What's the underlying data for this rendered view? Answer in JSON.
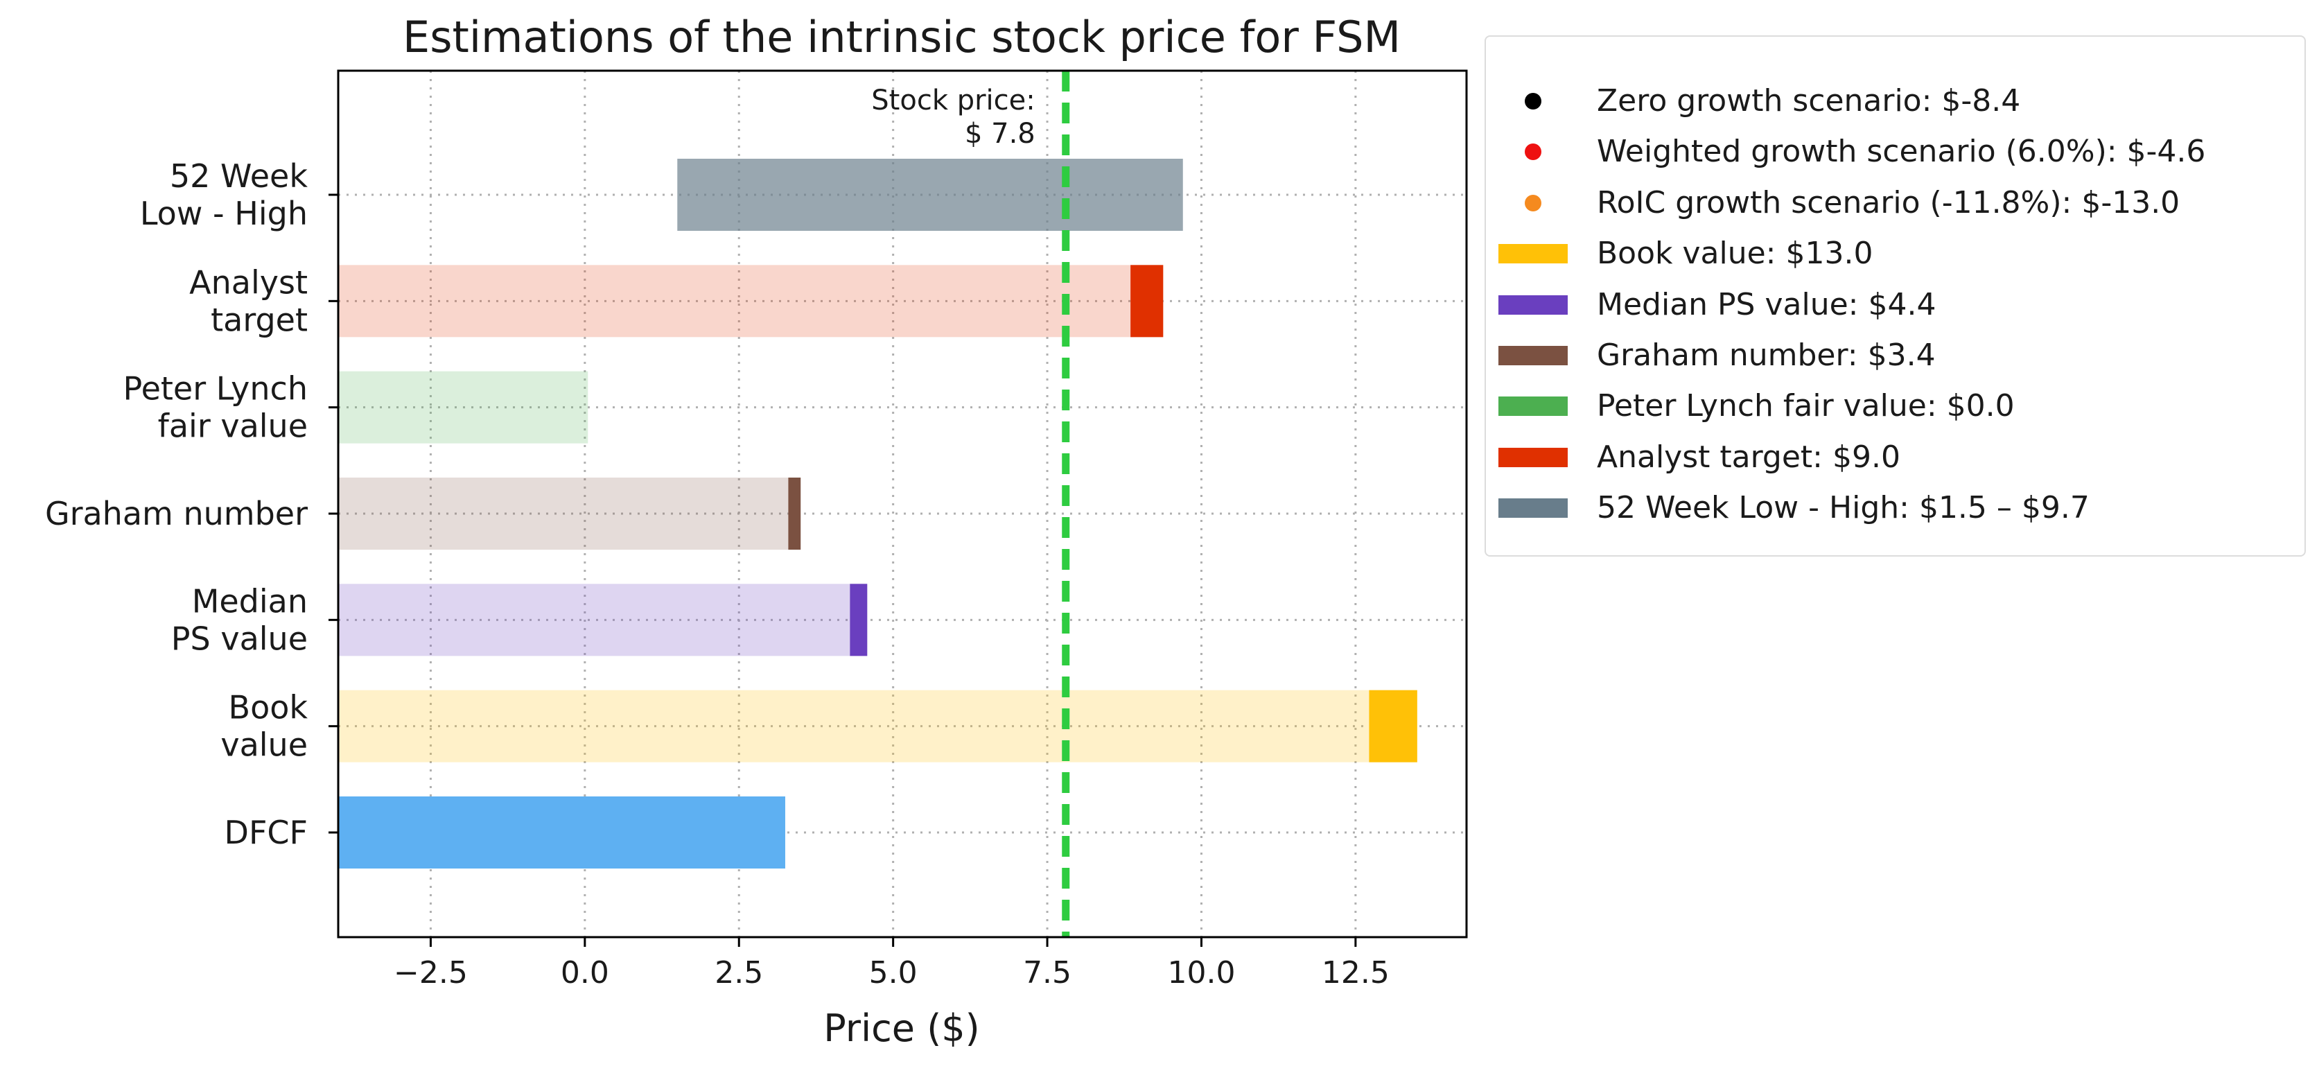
{
  "chart_data": {
    "type": "bar",
    "orientation": "horizontal",
    "title": "Estimations of the intrinsic stock price for FSM",
    "xlabel": "Price ($)",
    "ylabel": "",
    "xlim": [
      -4.0,
      14.3
    ],
    "xticks": [
      -2.5,
      0.0,
      2.5,
      5.0,
      7.5,
      10.0,
      12.5
    ],
    "xtick_labels": [
      "−2.5",
      "0.0",
      "2.5",
      "5.0",
      "7.5",
      "10.0",
      "12.5"
    ],
    "grid": true,
    "categories": [
      {
        "label": "DFCF",
        "lines": [
          "DFCF"
        ]
      },
      {
        "label": "Book value",
        "lines": [
          "Book",
          "value"
        ]
      },
      {
        "label": "Median PS value",
        "lines": [
          "Median",
          "PS value"
        ]
      },
      {
        "label": "Graham number",
        "lines": [
          "Graham number"
        ]
      },
      {
        "label": "Peter Lynch fair value",
        "lines": [
          "Peter Lynch",
          "fair value"
        ]
      },
      {
        "label": "Analyst target",
        "lines": [
          "Analyst",
          "target"
        ]
      },
      {
        "label": "52 Week Low - High",
        "lines": [
          "52 Week",
          "Low - High"
        ]
      }
    ],
    "bars": [
      {
        "category": "DFCF",
        "start": -4.0,
        "end": 3.25,
        "color": "#5eb0f2",
        "opacity": 1.0
      },
      {
        "category": "Book value",
        "start": -4.0,
        "end": 13.5,
        "color": "#ffc107",
        "opacity": 0.22
      },
      {
        "category": "Book value",
        "start": 12.72,
        "end": 13.5,
        "color": "#ffc107",
        "opacity": 1.0
      },
      {
        "category": "Median PS value",
        "start": -4.0,
        "end": 4.58,
        "color": "#6a3fbf",
        "opacity": 0.22
      },
      {
        "category": "Median PS value",
        "start": 4.3,
        "end": 4.58,
        "color": "#6a3fbf",
        "opacity": 1.0
      },
      {
        "category": "Graham number",
        "start": -4.0,
        "end": 3.5,
        "color": "#7b5141",
        "opacity": 0.2
      },
      {
        "category": "Graham number",
        "start": 3.3,
        "end": 3.5,
        "color": "#7b5141",
        "opacity": 1.0
      },
      {
        "category": "Peter Lynch fair value",
        "start": -4.0,
        "end": 0.05,
        "color": "#4caf50",
        "opacity": 0.2
      },
      {
        "category": "Analyst target",
        "start": -4.0,
        "end": 9.38,
        "color": "#e03000",
        "opacity": 0.2
      },
      {
        "category": "Analyst target",
        "start": 8.85,
        "end": 9.38,
        "color": "#e03000",
        "opacity": 1.0
      },
      {
        "category": "52 Week Low - High",
        "start": 1.5,
        "end": 9.7,
        "color": "#687d8b",
        "opacity": 0.68
      }
    ],
    "stock_price": {
      "value": 7.8,
      "label_lines": [
        "Stock price:",
        "$ 7.8"
      ],
      "color": "#2ecc40"
    },
    "legend": {
      "placement": "outside-right",
      "items": [
        {
          "label": "Zero growth scenario: $-8.4",
          "marker": "dot",
          "color": "#000000"
        },
        {
          "label": "Weighted growth scenario (6.0%): $-4.6",
          "marker": "dot",
          "color": "#ee1111"
        },
        {
          "label": "RoIC growth scenario (-11.8%): $-13.0",
          "marker": "dot",
          "color": "#f58a1f"
        },
        {
          "label": "Book value: $13.0",
          "marker": "patch",
          "color": "#ffc107"
        },
        {
          "label": "Median PS value: $4.4",
          "marker": "patch",
          "color": "#6a3fbf"
        },
        {
          "label": "Graham number: $3.4",
          "marker": "patch",
          "color": "#7b5141"
        },
        {
          "label": "Peter Lynch fair value: $0.0",
          "marker": "patch",
          "color": "#4caf50"
        },
        {
          "label": "Analyst target: $9.0",
          "marker": "patch",
          "color": "#e03000"
        },
        {
          "label": "52 Week Low - High: $1.5 – $9.7",
          "marker": "patch",
          "color": "#687d8b"
        }
      ]
    }
  }
}
